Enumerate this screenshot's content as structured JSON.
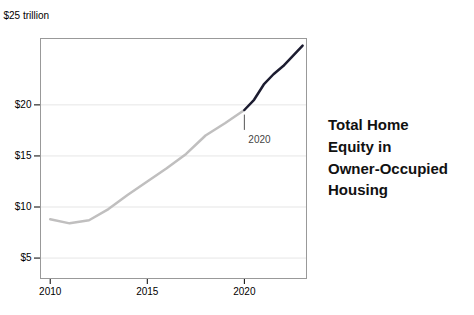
{
  "chart_data": {
    "type": "line",
    "title": "Total Home\nEquity in\nOwner-Occupied\nHousing",
    "ylabel": "$25 trillion",
    "series": [
      {
        "color": "#c0bfbf",
        "x": [
          2010,
          2011,
          2012,
          2013,
          2014,
          2015,
          2016,
          2017,
          2018,
          2019,
          2020
        ],
        "values": [
          8.8,
          8.4,
          8.7,
          9.8,
          11.2,
          12.5,
          13.8,
          15.2,
          17.0,
          18.2,
          19.5
        ]
      },
      {
        "color": "#1c1c30",
        "x": [
          2020,
          2020.5,
          2021,
          2021.5,
          2022,
          2022.5,
          2023
        ],
        "values": [
          19.5,
          20.5,
          22.0,
          23.0,
          23.8,
          24.8,
          25.8
        ]
      }
    ],
    "xlim": [
      2009.5,
      2023.2
    ],
    "xticks": [
      2010,
      2015,
      2020
    ],
    "ylim": [
      3,
      26.5
    ],
    "yticks": [
      {
        "value": 5,
        "label": "$5"
      },
      {
        "value": 10,
        "label": "$10"
      },
      {
        "value": 15,
        "label": "$15"
      },
      {
        "value": 20,
        "label": "$20"
      }
    ],
    "grid": true,
    "annotations": [
      {
        "text": "2020",
        "x": 2020,
        "y": 17.0,
        "line": [
          17.5,
          19.0
        ]
      }
    ]
  }
}
